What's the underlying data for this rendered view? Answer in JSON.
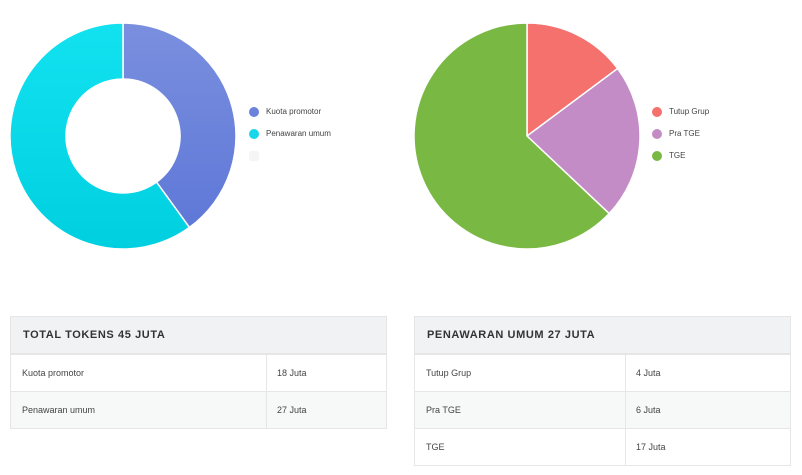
{
  "chart_data": [
    {
      "type": "pie",
      "variant": "donut",
      "categories": [
        "Kuota promotor",
        "Penawaran umum"
      ],
      "values": [
        18,
        27
      ],
      "colors": [
        "#6c82dc",
        "#1ad6ea"
      ],
      "legend": "right"
    },
    {
      "type": "pie",
      "categories": [
        "Tutup Grup",
        "Pra TGE",
        "TGE"
      ],
      "values": [
        4,
        6,
        17
      ],
      "colors": [
        "#f4716d",
        "#c48cc6",
        "#7ab844"
      ],
      "legend": "right"
    }
  ],
  "tables": [
    {
      "title": "TOTAL TOKENS 45 JUTA",
      "rows": [
        {
          "label": "Kuota promotor",
          "value": "18 Juta"
        },
        {
          "label": "Penawaran umum",
          "value": "27 Juta"
        }
      ]
    },
    {
      "title": "PENAWARAN UMUM 27 JUTA",
      "rows": [
        {
          "label": "Tutup Grup",
          "value": "4 Juta"
        },
        {
          "label": "Pra TGE",
          "value": "6 Juta"
        },
        {
          "label": "TGE",
          "value": "17 Juta"
        }
      ]
    }
  ]
}
